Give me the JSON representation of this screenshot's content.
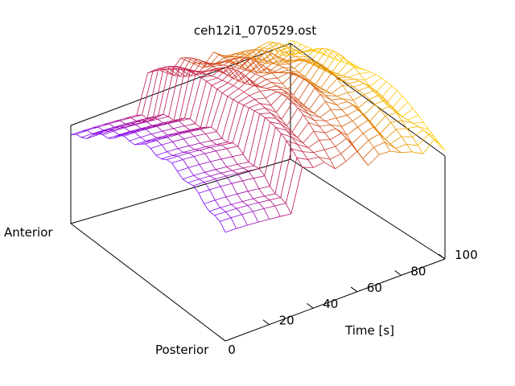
{
  "chart_data": {
    "type": "surface-3d-mesh",
    "title": "ceh12i1_070529.ost",
    "xlabel": "Time [s]",
    "ylabel_near": "Posterior",
    "ylabel_far": "Anterior",
    "x_ticks": [
      0,
      20,
      40,
      60,
      80,
      100
    ],
    "xlim": [
      0,
      100
    ],
    "grid": false,
    "legend": "none",
    "color_scale": [
      "#7a00ff",
      "#c0145a",
      "#d85a00",
      "#ffd000"
    ],
    "surface": {
      "description_free_params_note": "",
      "time_samples": [
        0,
        5,
        10,
        15,
        20,
        25,
        30,
        35,
        40,
        45,
        50,
        55,
        60,
        65,
        70,
        75,
        80,
        85,
        90,
        95,
        100
      ],
      "position_rows": 30
    }
  }
}
